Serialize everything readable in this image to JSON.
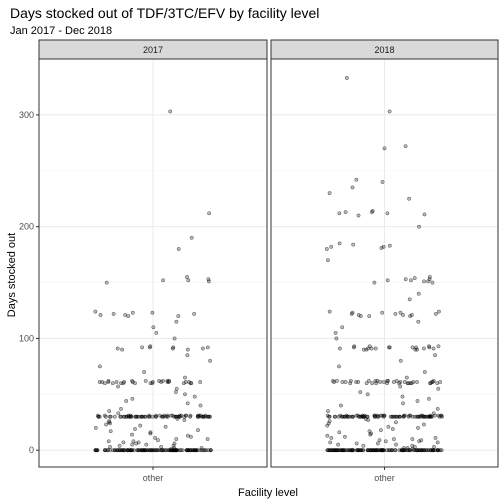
{
  "chart_data": {
    "type": "scatter",
    "title": "Days stocked out of TDF/3TC/EFV by facility level",
    "subtitle": "Jan 2017 - Dec 2018",
    "xlabel": "Facility level",
    "ylabel": "Days stocked out",
    "ylim": [
      -15,
      350
    ],
    "y_ticks": [
      0,
      100,
      200,
      300
    ],
    "x_categories": [
      "other"
    ],
    "grid": true,
    "jitter": "horizontal",
    "panels": [
      {
        "facet": "2017",
        "x": "other",
        "y": [
          0,
          0,
          0,
          0,
          0,
          0,
          0,
          0,
          0,
          0,
          0,
          0,
          0,
          0,
          0,
          0,
          0,
          0,
          0,
          0,
          0,
          0,
          0,
          0,
          0,
          0,
          0,
          0,
          0,
          0,
          0,
          0,
          0,
          0,
          0,
          0,
          0,
          0,
          0,
          0,
          0,
          0,
          0,
          0,
          0,
          0,
          0,
          0,
          0,
          0,
          0,
          0,
          0,
          0,
          0,
          0,
          0,
          0,
          0,
          0,
          0,
          0,
          0,
          0,
          0,
          0,
          0,
          0,
          0,
          0,
          0,
          0,
          0,
          0,
          0,
          0,
          0,
          0,
          0,
          0,
          0,
          0,
          0,
          0,
          0,
          0,
          0,
          0,
          0,
          0,
          0,
          0,
          0,
          0,
          0,
          0,
          0,
          0,
          0,
          0,
          0,
          0,
          0,
          0,
          0,
          0,
          0,
          0,
          0,
          0,
          0,
          0,
          0,
          0,
          0,
          0,
          0,
          0,
          0,
          0,
          0,
          0,
          0,
          0,
          0,
          0,
          0,
          0,
          0,
          0,
          1,
          2,
          2,
          3,
          3,
          4,
          4,
          5,
          5,
          6,
          6,
          7,
          7,
          8,
          8,
          9,
          10,
          10,
          11,
          12,
          13,
          14,
          15,
          16,
          17,
          18,
          19,
          20,
          21,
          22,
          23,
          24,
          25,
          26,
          27,
          28,
          30,
          30,
          30,
          30,
          30,
          30,
          30,
          30,
          30,
          30,
          30,
          30,
          30,
          30,
          30,
          30,
          30,
          30,
          30,
          30,
          30,
          30,
          30,
          30,
          30,
          30,
          30,
          30,
          30,
          30,
          30,
          30,
          30,
          30,
          30,
          30,
          30,
          30,
          30,
          30,
          30,
          30,
          30,
          30,
          30,
          30,
          30,
          30,
          30,
          30,
          30,
          30,
          30,
          30,
          30,
          30,
          30,
          30,
          30,
          30,
          31,
          31,
          31,
          31,
          31,
          31,
          31,
          31,
          31,
          31,
          31,
          31,
          31,
          31,
          31,
          31,
          31,
          31,
          31,
          31,
          33,
          35,
          37,
          40,
          42,
          44,
          46,
          48,
          50,
          52,
          55,
          57,
          60,
          60,
          60,
          60,
          60,
          60,
          60,
          60,
          60,
          60,
          61,
          61,
          61,
          61,
          61,
          61,
          61,
          61,
          61,
          61,
          61,
          61,
          61,
          62,
          62,
          62,
          62,
          62,
          62,
          62,
          65,
          70,
          75,
          80,
          85,
          90,
          90,
          91,
          91,
          91,
          92,
          92,
          92,
          92,
          93,
          100,
          105,
          110,
          115,
          120,
          120,
          121,
          121,
          122,
          122,
          123,
          123,
          124,
          150,
          151,
          152,
          152,
          153,
          155,
          180,
          190,
          212,
          303
        ]
      },
      {
        "facet": "2018",
        "x": "other",
        "y": [
          0,
          0,
          0,
          0,
          0,
          0,
          0,
          0,
          0,
          0,
          0,
          0,
          0,
          0,
          0,
          0,
          0,
          0,
          0,
          0,
          0,
          0,
          0,
          0,
          0,
          0,
          0,
          0,
          0,
          0,
          0,
          0,
          0,
          0,
          0,
          0,
          0,
          0,
          0,
          0,
          0,
          0,
          0,
          0,
          0,
          0,
          0,
          0,
          0,
          0,
          0,
          0,
          0,
          0,
          0,
          0,
          0,
          0,
          0,
          0,
          0,
          0,
          0,
          0,
          0,
          0,
          0,
          0,
          0,
          0,
          0,
          0,
          0,
          0,
          0,
          0,
          0,
          0,
          0,
          0,
          0,
          0,
          0,
          0,
          0,
          0,
          0,
          0,
          0,
          0,
          0,
          0,
          0,
          0,
          0,
          0,
          0,
          0,
          0,
          0,
          0,
          0,
          0,
          0,
          0,
          0,
          0,
          0,
          0,
          0,
          0,
          0,
          0,
          0,
          0,
          0,
          0,
          0,
          0,
          0,
          0,
          0,
          0,
          0,
          0,
          0,
          0,
          0,
          0,
          0,
          0,
          0,
          0,
          0,
          0,
          0,
          0,
          0,
          0,
          0,
          1,
          2,
          2,
          3,
          3,
          4,
          4,
          5,
          5,
          6,
          6,
          7,
          7,
          8,
          8,
          9,
          9,
          10,
          10,
          11,
          11,
          12,
          13,
          14,
          15,
          16,
          17,
          18,
          19,
          20,
          21,
          22,
          23,
          24,
          25,
          26,
          27,
          28,
          30,
          30,
          30,
          30,
          30,
          30,
          30,
          30,
          30,
          30,
          30,
          30,
          30,
          30,
          30,
          30,
          30,
          30,
          30,
          30,
          30,
          30,
          30,
          30,
          30,
          30,
          30,
          30,
          30,
          30,
          30,
          30,
          30,
          30,
          30,
          30,
          30,
          30,
          30,
          30,
          30,
          30,
          30,
          30,
          30,
          30,
          30,
          30,
          30,
          30,
          30,
          30,
          30,
          30,
          30,
          30,
          30,
          30,
          30,
          30,
          30,
          30,
          30,
          30,
          30,
          31,
          31,
          31,
          31,
          31,
          31,
          31,
          31,
          31,
          31,
          31,
          31,
          31,
          31,
          31,
          31,
          31,
          31,
          31,
          31,
          31,
          31,
          31,
          31,
          31,
          33,
          35,
          37,
          40,
          42,
          44,
          46,
          48,
          50,
          52,
          55,
          57,
          60,
          60,
          60,
          60,
          60,
          60,
          60,
          60,
          60,
          60,
          60,
          60,
          60,
          61,
          61,
          61,
          61,
          61,
          61,
          61,
          61,
          61,
          61,
          61,
          61,
          61,
          61,
          61,
          62,
          62,
          62,
          62,
          62,
          62,
          62,
          62,
          62,
          62,
          65,
          70,
          75,
          80,
          85,
          90,
          90,
          90,
          90,
          91,
          91,
          91,
          91,
          91,
          91,
          92,
          92,
          92,
          92,
          92,
          92,
          93,
          93,
          93,
          93,
          100,
          105,
          110,
          115,
          120,
          120,
          120,
          121,
          121,
          121,
          122,
          122,
          122,
          123,
          123,
          123,
          124,
          124,
          135,
          140,
          150,
          150,
          151,
          151,
          152,
          152,
          153,
          153,
          154,
          155,
          170,
          180,
          181,
          182,
          182,
          183,
          184,
          185,
          200,
          210,
          211,
          212,
          212,
          213,
          213,
          214,
          225,
          230,
          235,
          240,
          242,
          270,
          272,
          303,
          333
        ]
      }
    ]
  }
}
